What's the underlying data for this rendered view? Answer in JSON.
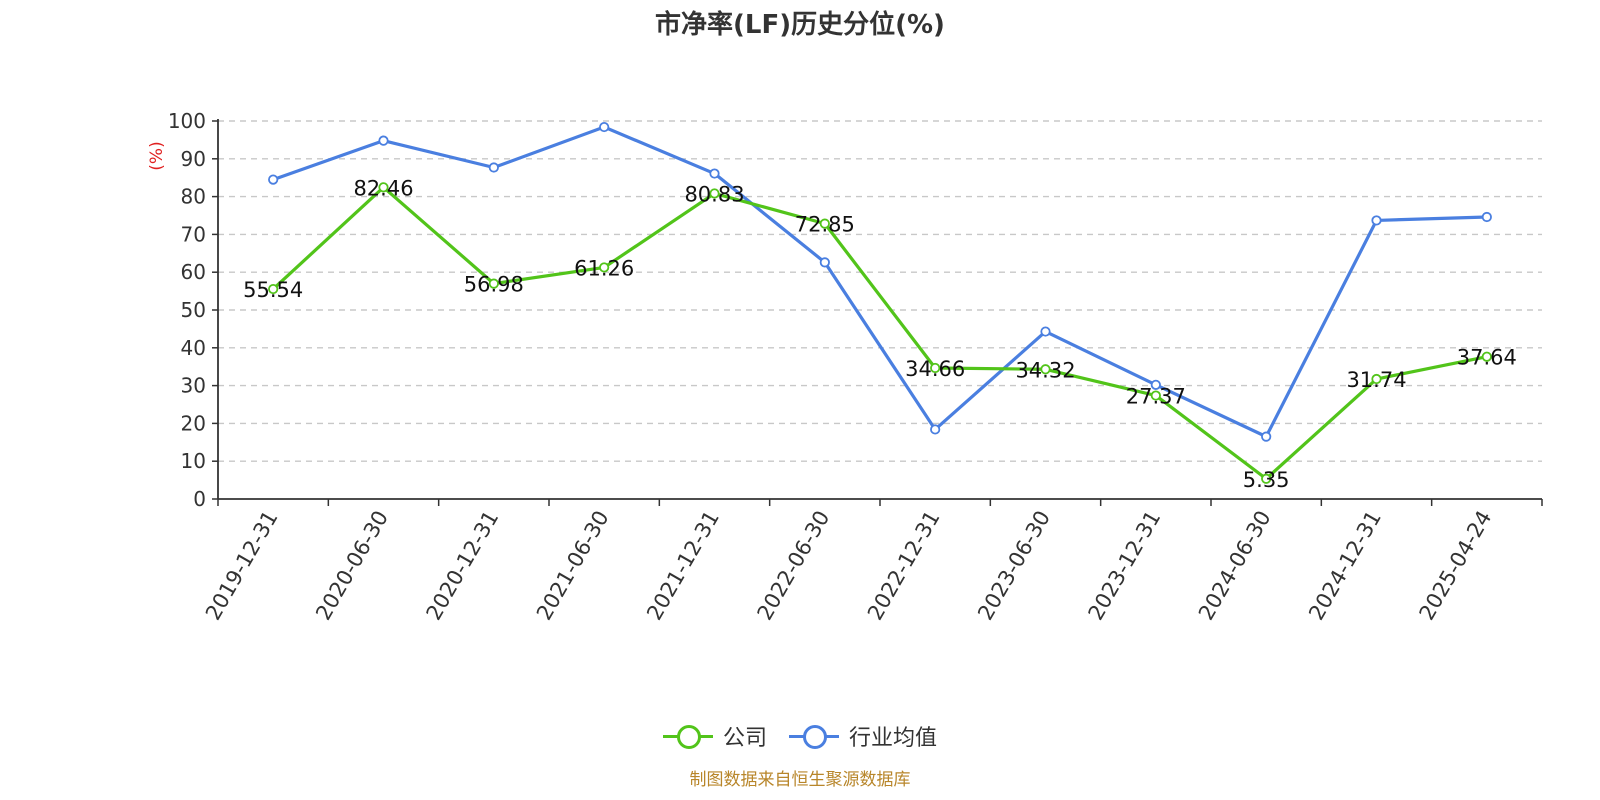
{
  "title": "市净率(LF)历史分位(%)",
  "source": "制图数据来自恒生聚源数据库",
  "chart_data": {
    "type": "line",
    "title": "市净率(LF)历史分位(%)",
    "ylabel": "(%)",
    "ylim": [
      0,
      100
    ],
    "yticks": [
      0,
      10,
      20,
      30,
      40,
      50,
      60,
      70,
      80,
      90,
      100
    ],
    "grid": true,
    "legend_position": "bottom",
    "categories": [
      "2019-12-31",
      "2020-06-30",
      "2020-12-31",
      "2021-06-30",
      "2021-12-31",
      "2022-06-30",
      "2022-12-31",
      "2023-06-30",
      "2023-12-31",
      "2024-06-30",
      "2024-12-31",
      "2025-04-24"
    ],
    "series": [
      {
        "name": "公司",
        "color": "#52c41a",
        "show_labels": true,
        "values": [
          55.54,
          82.46,
          56.98,
          61.26,
          80.83,
          72.85,
          34.66,
          34.32,
          27.37,
          5.35,
          31.74,
          37.64
        ]
      },
      {
        "name": "行业均值",
        "color": "#4a7fe0",
        "show_labels": false,
        "values": [
          84.5,
          94.8,
          87.7,
          98.4,
          86.1,
          62.6,
          18.4,
          44.3,
          30.2,
          16.5,
          73.7,
          74.6
        ]
      }
    ]
  }
}
